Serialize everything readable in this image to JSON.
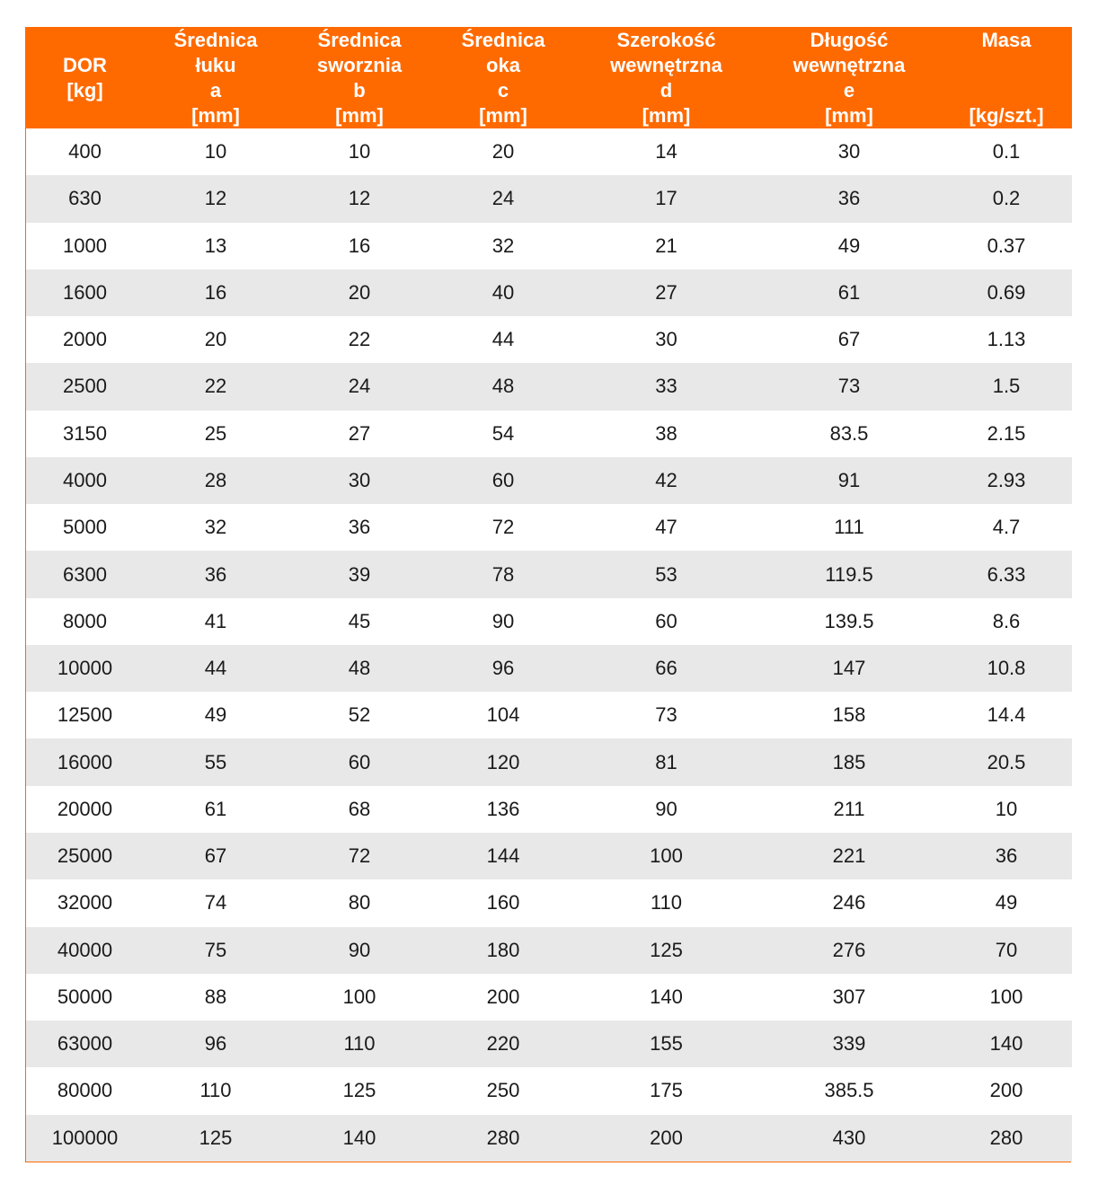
{
  "table": {
    "header_color": "#ff6a00",
    "stripe_color": "#e8e8e8",
    "columns": [
      {
        "lines": [
          "",
          "DOR",
          "[kg]",
          ""
        ],
        "pad_top": true
      },
      {
        "lines": [
          "Średnica",
          "łuku",
          "a",
          "[mm]"
        ]
      },
      {
        "lines": [
          "Średnica",
          "sworznia",
          "b",
          "[mm]"
        ]
      },
      {
        "lines": [
          "Średnica",
          "oka",
          "c",
          "[mm]"
        ]
      },
      {
        "lines": [
          "Szerokość",
          "wewnętrzna",
          "d",
          "[mm]"
        ]
      },
      {
        "lines": [
          "Długość",
          "wewnętrzna",
          "e",
          "[mm]"
        ]
      },
      {
        "lines": [
          "Masa",
          "",
          "",
          "[kg/szt.]"
        ]
      }
    ],
    "rows": [
      [
        "400",
        "10",
        "10",
        "20",
        "14",
        "30",
        "0.1"
      ],
      [
        "630",
        "12",
        "12",
        "24",
        "17",
        "36",
        "0.2"
      ],
      [
        "1000",
        "13",
        "16",
        "32",
        "21",
        "49",
        "0.37"
      ],
      [
        "1600",
        "16",
        "20",
        "40",
        "27",
        "61",
        "0.69"
      ],
      [
        "2000",
        "20",
        "22",
        "44",
        "30",
        "67",
        "1.13"
      ],
      [
        "2500",
        "22",
        "24",
        "48",
        "33",
        "73",
        "1.5"
      ],
      [
        "3150",
        "25",
        "27",
        "54",
        "38",
        "83.5",
        "2.15"
      ],
      [
        "4000",
        "28",
        "30",
        "60",
        "42",
        "91",
        "2.93"
      ],
      [
        "5000",
        "32",
        "36",
        "72",
        "47",
        "111",
        "4.7"
      ],
      [
        "6300",
        "36",
        "39",
        "78",
        "53",
        "119.5",
        "6.33"
      ],
      [
        "8000",
        "41",
        "45",
        "90",
        "60",
        "139.5",
        "8.6"
      ],
      [
        "10000",
        "44",
        "48",
        "96",
        "66",
        "147",
        "10.8"
      ],
      [
        "12500",
        "49",
        "52",
        "104",
        "73",
        "158",
        "14.4"
      ],
      [
        "16000",
        "55",
        "60",
        "120",
        "81",
        "185",
        "20.5"
      ],
      [
        "20000",
        "61",
        "68",
        "136",
        "90",
        "211",
        "10"
      ],
      [
        "25000",
        "67",
        "72",
        "144",
        "100",
        "221",
        "36"
      ],
      [
        "32000",
        "74",
        "80",
        "160",
        "110",
        "246",
        "49"
      ],
      [
        "40000",
        "75",
        "90",
        "180",
        "125",
        "276",
        "70"
      ],
      [
        "50000",
        "88",
        "100",
        "200",
        "140",
        "307",
        "100"
      ],
      [
        "63000",
        "96",
        "110",
        "220",
        "155",
        "339",
        "140"
      ],
      [
        "80000",
        "110",
        "125",
        "250",
        "175",
        "385.5",
        "200"
      ],
      [
        "100000",
        "125",
        "140",
        "280",
        "200",
        "430",
        "280"
      ]
    ]
  }
}
